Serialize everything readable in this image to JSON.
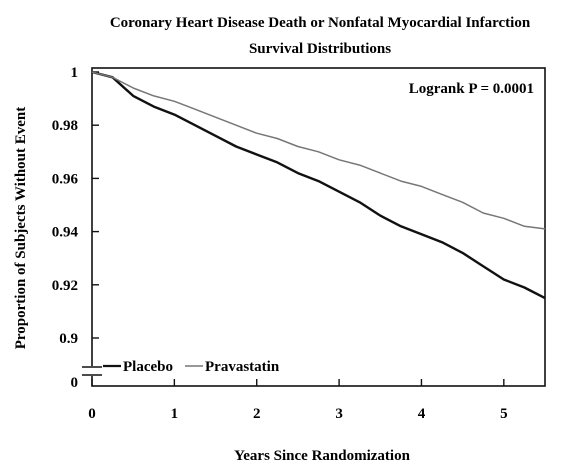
{
  "chart_data": {
    "type": "line",
    "title": [
      "Coronary Heart Disease Death or Nonfatal Myocardial Infarction",
      "Survival Distributions"
    ],
    "xlabel": "Years Since Randomization",
    "ylabel": "Proportion of Subjects Without Event",
    "xlim": [
      0,
      5.5
    ],
    "ylim": [
      0.9,
      1.0
    ],
    "axis_break": true,
    "grid": false,
    "legend_position": "bottom-left",
    "annotation": "Logrank P = 0.0001",
    "x_ticks": [
      {
        "value": 0,
        "label": "0"
      },
      {
        "value": 1,
        "label": "1"
      },
      {
        "value": 2,
        "label": "2"
      },
      {
        "value": 3,
        "label": "3"
      },
      {
        "value": 4,
        "label": "4"
      },
      {
        "value": 5,
        "label": "5"
      }
    ],
    "y_ticks": [
      {
        "value": 1.0,
        "label": "1"
      },
      {
        "value": 0.98,
        "label": "0.98"
      },
      {
        "value": 0.96,
        "label": "0.96"
      },
      {
        "value": 0.94,
        "label": "0.94"
      },
      {
        "value": 0.92,
        "label": "0.92"
      },
      {
        "value": 0.9,
        "label": "0.9"
      }
    ],
    "y_break_label": "0",
    "series": [
      {
        "name": "Placebo",
        "color": "#111111",
        "x": [
          0,
          0.25,
          0.5,
          0.75,
          1.0,
          1.25,
          1.5,
          1.75,
          2.0,
          2.25,
          2.5,
          2.75,
          3.0,
          3.25,
          3.5,
          3.75,
          4.0,
          4.25,
          4.5,
          4.75,
          5.0,
          5.25,
          5.5
        ],
        "y": [
          1.0,
          0.998,
          0.991,
          0.987,
          0.984,
          0.98,
          0.976,
          0.972,
          0.969,
          0.966,
          0.962,
          0.959,
          0.955,
          0.951,
          0.946,
          0.942,
          0.939,
          0.936,
          0.932,
          0.927,
          0.922,
          0.919,
          0.915
        ]
      },
      {
        "name": "Pravastatin",
        "color": "#777777",
        "x": [
          0,
          0.25,
          0.5,
          0.75,
          1.0,
          1.25,
          1.5,
          1.75,
          2.0,
          2.25,
          2.5,
          2.75,
          3.0,
          3.25,
          3.5,
          3.75,
          4.0,
          4.25,
          4.5,
          4.75,
          5.0,
          5.25,
          5.5
        ],
        "y": [
          1.0,
          0.998,
          0.994,
          0.991,
          0.989,
          0.986,
          0.983,
          0.98,
          0.977,
          0.975,
          0.972,
          0.97,
          0.967,
          0.965,
          0.962,
          0.959,
          0.957,
          0.954,
          0.951,
          0.947,
          0.945,
          0.942,
          0.941
        ]
      }
    ]
  }
}
